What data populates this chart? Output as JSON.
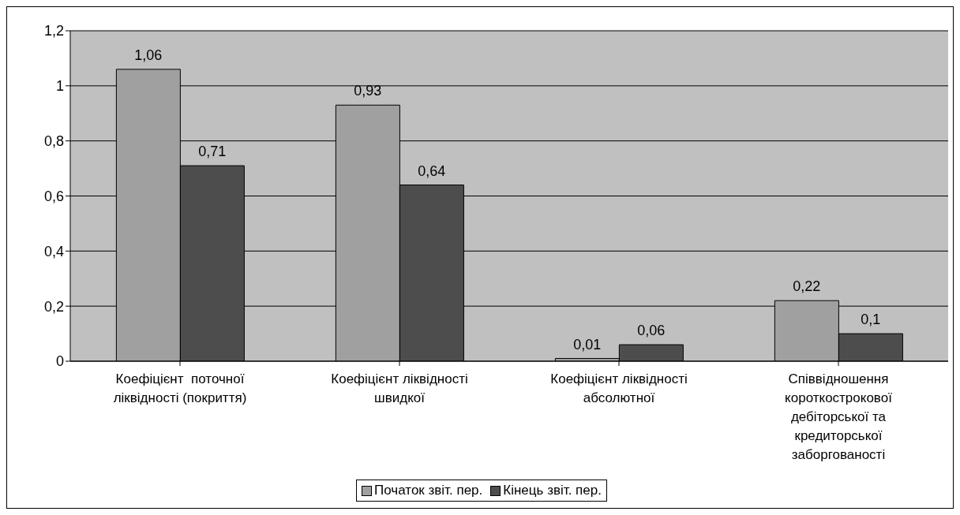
{
  "chart_data": {
    "type": "bar",
    "categories": [
      "Коефіцієнт  поточної ліквідності (покриття)",
      "Коефіцієнт ліквідності швидкої",
      "Коефіцієнт ліквідності абсолютної",
      "Співвідношення короткострокової дебіторської та кредиторської заборгованості"
    ],
    "series": [
      {
        "name": "Початок звіт. пер.",
        "color": "#a0a0a0",
        "values": [
          1.06,
          0.93,
          0.01,
          0.22
        ],
        "value_labels": [
          "1,06",
          "0,93",
          "0,01",
          "0,22"
        ]
      },
      {
        "name": "Кінець звіт. пер.",
        "color": "#4d4d4d",
        "values": [
          0.71,
          0.64,
          0.06,
          0.1
        ],
        "value_labels": [
          "0,71",
          "0,64",
          "0,06",
          "0,1"
        ]
      }
    ],
    "ylim": [
      0,
      1.2
    ],
    "yticks": [
      0,
      {
        "value": 0.2,
        "label": "0,2"
      },
      {
        "value": 0.4,
        "label": "0,4"
      },
      {
        "value": 0.6,
        "label": "0,6"
      },
      {
        "value": 0.8,
        "label": "0,8"
      },
      1,
      {
        "value": 1.2,
        "label": "1,2"
      }
    ],
    "grid": "y",
    "legend": "bottom"
  }
}
